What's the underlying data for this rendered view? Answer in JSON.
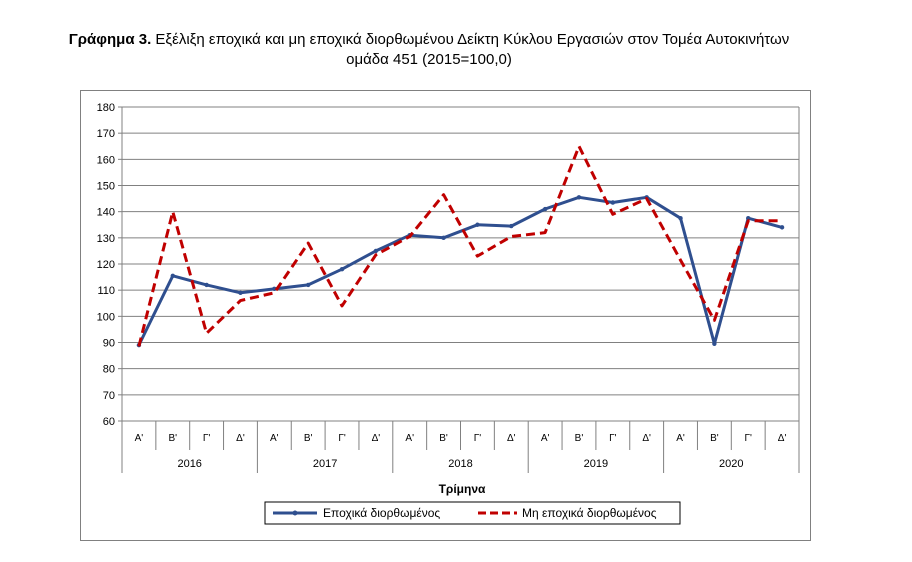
{
  "title": {
    "prefix": "Γράφημα 3.",
    "line1": "Εξέλιξη εποχικά και μη εποχικά διορθωμένου Δείκτη Κύκλου Εργασιών στον Τομέα Αυτοκινήτων",
    "line2": "ομάδα 451 (2015=100,0)"
  },
  "chart_data": {
    "type": "line",
    "categories": [
      "Α'",
      "Β'",
      "Γ'",
      "Δ'",
      "Α'",
      "Β'",
      "Γ'",
      "Δ'",
      "Α'",
      "Β'",
      "Γ'",
      "Δ'",
      "Α'",
      "Β'",
      "Γ'",
      "Δ'",
      "Α'",
      "Β'",
      "Γ'",
      "Δ'"
    ],
    "years": [
      "2016",
      "2017",
      "2018",
      "2019",
      "2020"
    ],
    "series": [
      {
        "name": "Εποχικά διορθωμένος",
        "color": "#2F4F8F",
        "dash": "solid",
        "values": [
          89,
          115.5,
          112,
          109,
          110.5,
          112,
          118,
          125,
          131,
          130,
          135,
          134.5,
          141,
          145.5,
          143.5,
          145.5,
          137.5,
          89.5,
          137.5,
          134
        ]
      },
      {
        "name": "Μη εποχικά διορθωμένος",
        "color": "#C00000",
        "dash": "dashed",
        "values": [
          88.5,
          140,
          93.5,
          106,
          109,
          128,
          104,
          123.5,
          130.5,
          146.5,
          123,
          130.5,
          132,
          165,
          139,
          145,
          121.5,
          98.5,
          136.5,
          136.5
        ]
      }
    ],
    "xlabel": "Τρίμηνα",
    "ylabel": "",
    "ylim": [
      60,
      180
    ],
    "yticks": [
      "60",
      "70",
      "80",
      "90",
      "100",
      "110",
      "120",
      "130",
      "140",
      "150",
      "160",
      "170",
      "180"
    ],
    "grid": true,
    "legend": "bottom"
  }
}
